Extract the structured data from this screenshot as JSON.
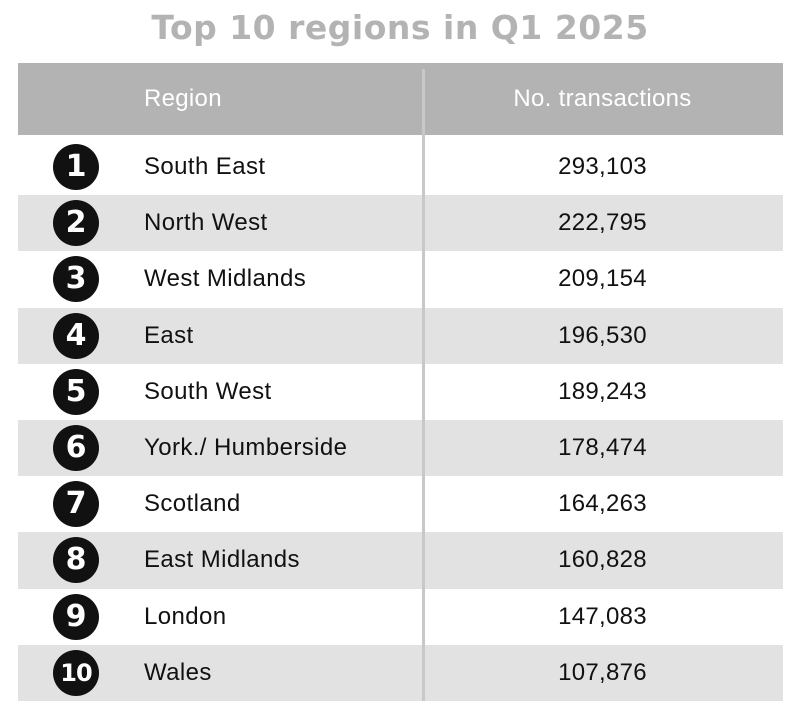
{
  "chart_data": {
    "type": "table",
    "title": "Top 10 regions in Q1 2025",
    "columns": [
      "Region",
      "No. transactions"
    ],
    "rows": [
      {
        "rank": "1",
        "region": "South East",
        "transactions": "293,103"
      },
      {
        "rank": "2",
        "region": "North West",
        "transactions": "222,795"
      },
      {
        "rank": "3",
        "region": "West Midlands",
        "transactions": "209,154"
      },
      {
        "rank": "4",
        "region": "East",
        "transactions": "196,530"
      },
      {
        "rank": "5",
        "region": "South West",
        "transactions": "189,243"
      },
      {
        "rank": "6",
        "region": "York./ Humberside",
        "transactions": "178,474"
      },
      {
        "rank": "7",
        "region": "Scotland",
        "transactions": "164,263"
      },
      {
        "rank": "8",
        "region": "East Midlands",
        "transactions": "160,828"
      },
      {
        "rank": "9",
        "region": "London",
        "transactions": "147,083"
      },
      {
        "rank": "10",
        "region": "Wales",
        "transactions": "107,876"
      }
    ],
    "colors": {
      "header_background": "#b3b3b3",
      "title": "#b3b3b3",
      "stripe": "#e2e2e2",
      "badge": "#111111"
    }
  }
}
